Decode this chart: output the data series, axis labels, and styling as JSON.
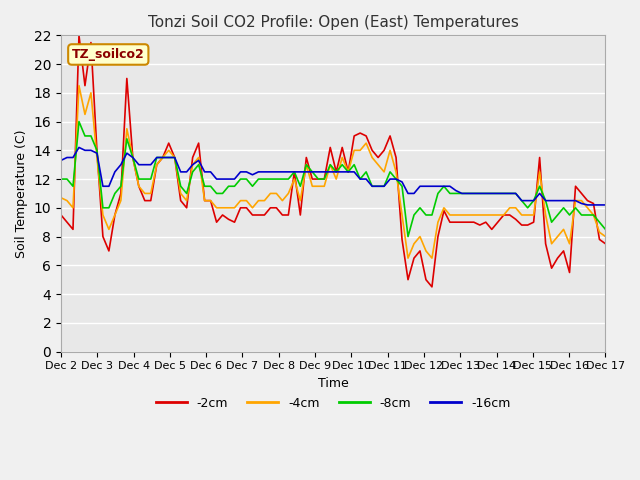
{
  "title": "Tonzi Soil CO2 Profile: Open (East) Temperatures",
  "xlabel": "Time",
  "ylabel": "Soil Temperature (C)",
  "annotation": "TZ_soilco2",
  "ylim": [
    0,
    22
  ],
  "xlim": [
    0,
    360
  ],
  "background_color": "#f0f0f0",
  "plot_bg_color": "#e8e8e8",
  "grid_color": "#ffffff",
  "title_color": "#333333",
  "series": [
    {
      "label": "-2cm",
      "color": "#dd0000"
    },
    {
      "label": "-4cm",
      "color": "#ffa500"
    },
    {
      "label": "-8cm",
      "color": "#00cc00"
    },
    {
      "label": "-16cm",
      "color": "#0000cc"
    }
  ],
  "x_ticks": [
    0,
    24,
    48,
    72,
    96,
    120,
    144,
    168,
    192,
    216,
    240,
    264,
    288,
    312,
    336,
    360
  ],
  "x_tick_labels": [
    "Dec 2",
    "Dec 3",
    "Dec 4",
    "Dec 5",
    "Dec 6",
    "Dec 7",
    "Dec 8",
    "Dec 9",
    "Dec 10",
    "Dec 11",
    "Dec 12",
    "Dec 13",
    "Dec 14",
    "Dec 15",
    "Dec 16",
    "Dec 17"
  ],
  "data_2cm": [
    9.5,
    9.0,
    8.5,
    22.0,
    18.5,
    21.5,
    14.0,
    8.0,
    7.0,
    9.5,
    11.0,
    19.0,
    13.5,
    11.5,
    10.5,
    10.5,
    13.0,
    13.5,
    14.5,
    13.5,
    10.5,
    10.0,
    13.5,
    14.5,
    10.5,
    10.5,
    9.0,
    9.5,
    9.2,
    9.0,
    10.0,
    10.0,
    9.5,
    9.5,
    9.5,
    10.0,
    10.0,
    9.5,
    9.5,
    12.5,
    9.5,
    13.5,
    12.0,
    12.0,
    12.0,
    14.2,
    12.5,
    14.2,
    12.5,
    15.0,
    15.2,
    15.0,
    14.0,
    13.5,
    14.0,
    15.0,
    13.5,
    7.8,
    5.0,
    6.5,
    7.0,
    5.0,
    4.5,
    8.0,
    9.8,
    9.0,
    9.0,
    9.0,
    9.0,
    9.0,
    8.8,
    9.0,
    8.5,
    9.0,
    9.5,
    9.5,
    9.2,
    8.8,
    8.8,
    9.0,
    13.5,
    7.5,
    5.8,
    6.5,
    7.0,
    5.5,
    11.5,
    11.0,
    10.5,
    10.3,
    7.8,
    7.5
  ],
  "data_4cm": [
    10.7,
    10.5,
    10.0,
    18.5,
    16.5,
    18.0,
    13.5,
    9.5,
    8.5,
    9.5,
    10.5,
    15.5,
    13.5,
    11.5,
    11.0,
    11.0,
    13.0,
    13.5,
    14.0,
    13.5,
    11.0,
    10.5,
    13.0,
    13.5,
    10.5,
    10.5,
    10.0,
    10.0,
    10.0,
    10.0,
    10.5,
    10.5,
    10.0,
    10.5,
    10.5,
    11.0,
    11.0,
    10.5,
    11.0,
    12.0,
    10.5,
    13.0,
    11.5,
    11.5,
    11.5,
    13.0,
    12.0,
    13.5,
    12.5,
    14.0,
    14.0,
    14.5,
    13.5,
    13.0,
    12.5,
    14.0,
    12.5,
    9.5,
    6.5,
    7.5,
    8.0,
    7.0,
    6.5,
    9.0,
    10.0,
    9.5,
    9.5,
    9.5,
    9.5,
    9.5,
    9.5,
    9.5,
    9.5,
    9.5,
    9.5,
    10.0,
    10.0,
    9.5,
    9.5,
    9.5,
    12.5,
    9.5,
    7.5,
    8.0,
    8.5,
    7.5,
    10.5,
    10.5,
    10.0,
    9.5,
    8.3,
    8.0
  ],
  "data_8cm": [
    12.0,
    12.0,
    11.5,
    16.0,
    15.0,
    15.0,
    14.0,
    10.0,
    10.0,
    11.0,
    11.5,
    14.8,
    13.5,
    12.0,
    12.0,
    12.0,
    13.5,
    13.5,
    13.5,
    13.5,
    11.5,
    11.0,
    12.5,
    13.0,
    11.5,
    11.5,
    11.0,
    11.0,
    11.5,
    11.5,
    12.0,
    12.0,
    11.5,
    12.0,
    12.0,
    12.0,
    12.0,
    12.0,
    12.0,
    12.5,
    11.5,
    13.0,
    12.5,
    12.0,
    12.0,
    13.0,
    12.5,
    13.0,
    12.5,
    13.0,
    12.0,
    12.5,
    11.5,
    11.5,
    11.5,
    12.5,
    12.0,
    11.5,
    8.0,
    9.5,
    10.0,
    9.5,
    9.5,
    11.0,
    11.5,
    11.0,
    11.0,
    11.0,
    11.0,
    11.0,
    11.0,
    11.0,
    11.0,
    11.0,
    11.0,
    11.0,
    11.0,
    10.5,
    10.0,
    10.5,
    11.5,
    10.5,
    9.0,
    9.5,
    10.0,
    9.5,
    10.0,
    9.5,
    9.5,
    9.5,
    9.0,
    8.5
  ],
  "data_16cm": [
    13.3,
    13.5,
    13.5,
    14.2,
    14.0,
    14.0,
    13.8,
    11.5,
    11.5,
    12.5,
    13.0,
    13.8,
    13.5,
    13.0,
    13.0,
    13.0,
    13.5,
    13.5,
    13.5,
    13.5,
    12.5,
    12.5,
    13.0,
    13.3,
    12.5,
    12.5,
    12.0,
    12.0,
    12.0,
    12.0,
    12.5,
    12.5,
    12.3,
    12.5,
    12.5,
    12.5,
    12.5,
    12.5,
    12.5,
    12.5,
    12.5,
    12.5,
    12.5,
    12.5,
    12.5,
    12.5,
    12.5,
    12.5,
    12.5,
    12.5,
    12.0,
    12.0,
    11.5,
    11.5,
    11.5,
    12.0,
    12.0,
    11.8,
    11.0,
    11.0,
    11.5,
    11.5,
    11.5,
    11.5,
    11.5,
    11.5,
    11.2,
    11.0,
    11.0,
    11.0,
    11.0,
    11.0,
    11.0,
    11.0,
    11.0,
    11.0,
    11.0,
    10.5,
    10.5,
    10.5,
    11.0,
    10.5,
    10.5,
    10.5,
    10.5,
    10.5,
    10.5,
    10.3,
    10.2,
    10.2,
    10.2,
    10.2
  ]
}
